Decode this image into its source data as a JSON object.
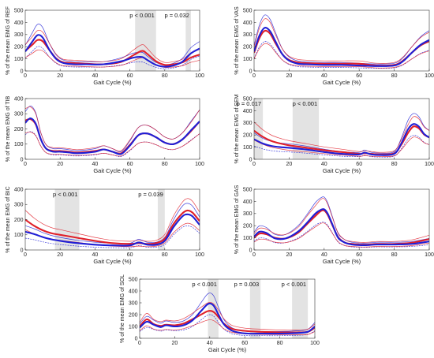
{
  "colors": {
    "group1": "#1f1fd6",
    "group2": "#e0202a",
    "shade": "#e3e3e3",
    "axis": "#333333"
  },
  "chart_data": [
    {
      "type": "line",
      "xlabel": "Gait Cycle (%)",
      "ylabel": "% of the mean EMG of REF",
      "xlim": [
        0,
        100
      ],
      "ylim": [
        0,
        500
      ],
      "xticks": [
        "0",
        "20",
        "40",
        "60",
        "80",
        "100"
      ],
      "yticks": [
        "0",
        "100",
        "200",
        "300",
        "400",
        "500"
      ],
      "significance": [
        {
          "from": 63,
          "to": 75,
          "label": "p < 0.001"
        },
        {
          "from": 92,
          "to": 95,
          "label": "p = 0.032"
        }
      ],
      "series": [
        {
          "color": "blue",
          "x": [
            0,
            4,
            7,
            10,
            14,
            18,
            22,
            28,
            35,
            45,
            55,
            62,
            67,
            70,
            75,
            80,
            85,
            90,
            95,
            100
          ],
          "y": [
            160,
            240,
            295,
            275,
            170,
            95,
            65,
            55,
            55,
            55,
            80,
            110,
            115,
            90,
            50,
            35,
            45,
            75,
            145,
            185
          ]
        },
        {
          "color": "red",
          "x": [
            0,
            4,
            7,
            10,
            14,
            18,
            22,
            28,
            35,
            45,
            55,
            62,
            67,
            70,
            75,
            80,
            85,
            90,
            95,
            100
          ],
          "y": [
            165,
            215,
            255,
            245,
            170,
            100,
            70,
            65,
            60,
            55,
            75,
            130,
            165,
            140,
            80,
            50,
            55,
            70,
            110,
            135
          ]
        }
      ]
    },
    {
      "type": "line",
      "xlabel": "Gait Cycle (%)",
      "ylabel": "% of the mean EMG of VAS",
      "xlim": [
        0,
        100
      ],
      "ylim": [
        0,
        500
      ],
      "xticks": [
        "0",
        "20",
        "40",
        "60",
        "80",
        "100"
      ],
      "yticks": [
        "0",
        "100",
        "200",
        "300",
        "400",
        "500"
      ],
      "significance": [],
      "series": [
        {
          "color": "blue",
          "x": [
            0,
            3,
            6,
            9,
            12,
            16,
            20,
            25,
            30,
            40,
            50,
            60,
            70,
            80,
            85,
            90,
            95,
            100
          ],
          "y": [
            160,
            290,
            355,
            330,
            250,
            140,
            85,
            60,
            55,
            50,
            50,
            45,
            40,
            45,
            80,
            150,
            215,
            255
          ]
        },
        {
          "color": "red",
          "x": [
            0,
            3,
            6,
            9,
            12,
            16,
            20,
            25,
            30,
            40,
            50,
            60,
            70,
            80,
            85,
            90,
            95,
            100
          ],
          "y": [
            150,
            270,
            330,
            310,
            235,
            140,
            90,
            70,
            65,
            60,
            60,
            60,
            45,
            50,
            85,
            150,
            210,
            245
          ]
        }
      ]
    },
    {
      "type": "line",
      "xlabel": "Gait Cycle (%)",
      "ylabel": "% of the mean EMG of TIB",
      "xlim": [
        0,
        100
      ],
      "ylim": [
        0,
        400
      ],
      "xticks": [
        "0",
        "20",
        "40",
        "60",
        "80",
        "100"
      ],
      "yticks": [
        "0",
        "100",
        "200",
        "300",
        "400"
      ],
      "significance": [],
      "series": [
        {
          "color": "blue",
          "x": [
            0,
            3,
            6,
            9,
            12,
            16,
            20,
            25,
            30,
            40,
            45,
            50,
            55,
            60,
            65,
            70,
            75,
            80,
            85,
            90,
            95,
            100
          ],
          "y": [
            240,
            270,
            235,
            130,
            70,
            50,
            50,
            45,
            40,
            50,
            65,
            50,
            35,
            90,
            160,
            170,
            145,
            110,
            100,
            130,
            190,
            250
          ]
        },
        {
          "color": "red",
          "x": [
            0,
            3,
            6,
            9,
            12,
            16,
            20,
            25,
            30,
            40,
            45,
            50,
            55,
            60,
            65,
            70,
            75,
            80,
            85,
            90,
            95,
            100
          ],
          "y": [
            255,
            265,
            230,
            130,
            70,
            55,
            55,
            50,
            45,
            55,
            65,
            50,
            40,
            95,
            160,
            170,
            145,
            110,
            100,
            130,
            185,
            250
          ]
        }
      ]
    },
    {
      "type": "line",
      "xlabel": "Gait Cycle (%)",
      "ylabel": "% of the mean EMG of SEM",
      "xlim": [
        0,
        100
      ],
      "ylim": [
        0,
        500
      ],
      "xticks": [
        "0",
        "20",
        "40",
        "60",
        "80",
        "100"
      ],
      "yticks": [
        "0",
        "100",
        "200",
        "300",
        "400",
        "500"
      ],
      "significance": [
        {
          "from": 0,
          "to": 5,
          "label": "p = 0.017"
        },
        {
          "from": 22,
          "to": 37,
          "label": "p < 0.001"
        }
      ],
      "series": [
        {
          "color": "blue",
          "x": [
            0,
            5,
            10,
            15,
            20,
            30,
            40,
            50,
            60,
            63,
            67,
            72,
            80,
            84,
            88,
            91,
            94,
            97,
            100
          ],
          "y": [
            165,
            130,
            110,
            100,
            95,
            80,
            60,
            45,
            40,
            55,
            40,
            35,
            45,
            130,
            250,
            290,
            270,
            210,
            180
          ]
        },
        {
          "color": "red",
          "x": [
            0,
            5,
            10,
            15,
            20,
            30,
            40,
            50,
            60,
            63,
            67,
            72,
            80,
            84,
            88,
            91,
            94,
            97,
            100
          ],
          "y": [
            235,
            185,
            150,
            130,
            115,
            95,
            75,
            60,
            45,
            50,
            45,
            40,
            50,
            120,
            220,
            270,
            255,
            205,
            180
          ]
        }
      ]
    },
    {
      "type": "line",
      "xlabel": "Gait Cycle (%)",
      "ylabel": "% of the mean EMG of BIC",
      "xlim": [
        0,
        100
      ],
      "ylim": [
        0,
        400
      ],
      "xticks": [
        "0",
        "20",
        "40",
        "60",
        "80",
        "100"
      ],
      "yticks": [
        "0",
        "100",
        "200",
        "300",
        "400"
      ],
      "significance": [
        {
          "from": 17,
          "to": 31,
          "label": "p < 0.001"
        },
        {
          "from": 76,
          "to": 80,
          "label": "p = 0.039"
        }
      ],
      "series": [
        {
          "color": "blue",
          "x": [
            0,
            5,
            10,
            15,
            20,
            30,
            40,
            50,
            60,
            65,
            70,
            75,
            80,
            85,
            90,
            93,
            96,
            100
          ],
          "y": [
            120,
            105,
            85,
            70,
            60,
            45,
            35,
            30,
            30,
            50,
            35,
            35,
            60,
            150,
            220,
            235,
            220,
            165
          ]
        },
        {
          "color": "red",
          "x": [
            0,
            5,
            10,
            15,
            20,
            30,
            40,
            50,
            60,
            65,
            70,
            75,
            80,
            85,
            90,
            93,
            96,
            100
          ],
          "y": [
            200,
            160,
            130,
            110,
            100,
            80,
            60,
            45,
            40,
            45,
            40,
            45,
            75,
            170,
            240,
            260,
            245,
            190
          ]
        }
      ]
    },
    {
      "type": "line",
      "xlabel": "Gait Cycle (%)",
      "ylabel": "% of the mean EMG of GAS",
      "xlim": [
        0,
        100
      ],
      "ylim": [
        0,
        500
      ],
      "xticks": [
        "0",
        "20",
        "40",
        "60",
        "80",
        "100"
      ],
      "yticks": [
        "0",
        "100",
        "200",
        "300",
        "400",
        "500"
      ],
      "significance": [],
      "series": [
        {
          "color": "blue",
          "x": [
            0,
            3,
            7,
            12,
            18,
            25,
            30,
            35,
            38,
            40,
            42,
            45,
            48,
            52,
            56,
            60,
            65,
            70,
            80,
            90,
            100
          ],
          "y": [
            110,
            150,
            140,
            95,
            95,
            150,
            220,
            300,
            330,
            335,
            300,
            200,
            100,
            60,
            45,
            40,
            40,
            45,
            45,
            50,
            70
          ]
        },
        {
          "color": "red",
          "x": [
            0,
            3,
            7,
            12,
            18,
            25,
            30,
            35,
            38,
            40,
            42,
            45,
            48,
            52,
            56,
            60,
            65,
            70,
            80,
            90,
            100
          ],
          "y": [
            100,
            135,
            130,
            100,
            95,
            140,
            210,
            280,
            320,
            325,
            290,
            195,
            105,
            60,
            50,
            45,
            45,
            50,
            50,
            60,
            90
          ]
        }
      ]
    },
    {
      "type": "line",
      "xlabel": "Gait Cycle (%)",
      "ylabel": "% of the mean EMG of SOL",
      "xlim": [
        0,
        100
      ],
      "ylim": [
        0,
        500
      ],
      "xticks": [
        "0",
        "20",
        "40",
        "60",
        "80",
        "100"
      ],
      "yticks": [
        "0",
        "100",
        "200",
        "300",
        "400",
        "500"
      ],
      "significance": [
        {
          "from": 39,
          "to": 45,
          "label": "p < 0.001"
        },
        {
          "from": 63,
          "to": 69,
          "label": "p = 0.003"
        },
        {
          "from": 87,
          "to": 96,
          "label": "p < 0.001"
        }
      ],
      "series": [
        {
          "color": "blue",
          "x": [
            0,
            4,
            8,
            12,
            15,
            20,
            25,
            30,
            35,
            39,
            42,
            45,
            48,
            52,
            56,
            62,
            70,
            80,
            90,
            96,
            100
          ],
          "y": [
            90,
            140,
            115,
            95,
            110,
            100,
            110,
            150,
            230,
            290,
            280,
            200,
            120,
            70,
            50,
            40,
            40,
            40,
            45,
            55,
            100
          ]
        },
        {
          "color": "red",
          "x": [
            0,
            4,
            8,
            12,
            15,
            20,
            25,
            30,
            35,
            39,
            42,
            45,
            48,
            52,
            56,
            62,
            70,
            80,
            90,
            96,
            100
          ],
          "y": [
            100,
            160,
            120,
            105,
            115,
            110,
            125,
            160,
            200,
            230,
            225,
            180,
            125,
            85,
            70,
            60,
            55,
            50,
            50,
            55,
            90
          ]
        }
      ]
    }
  ]
}
